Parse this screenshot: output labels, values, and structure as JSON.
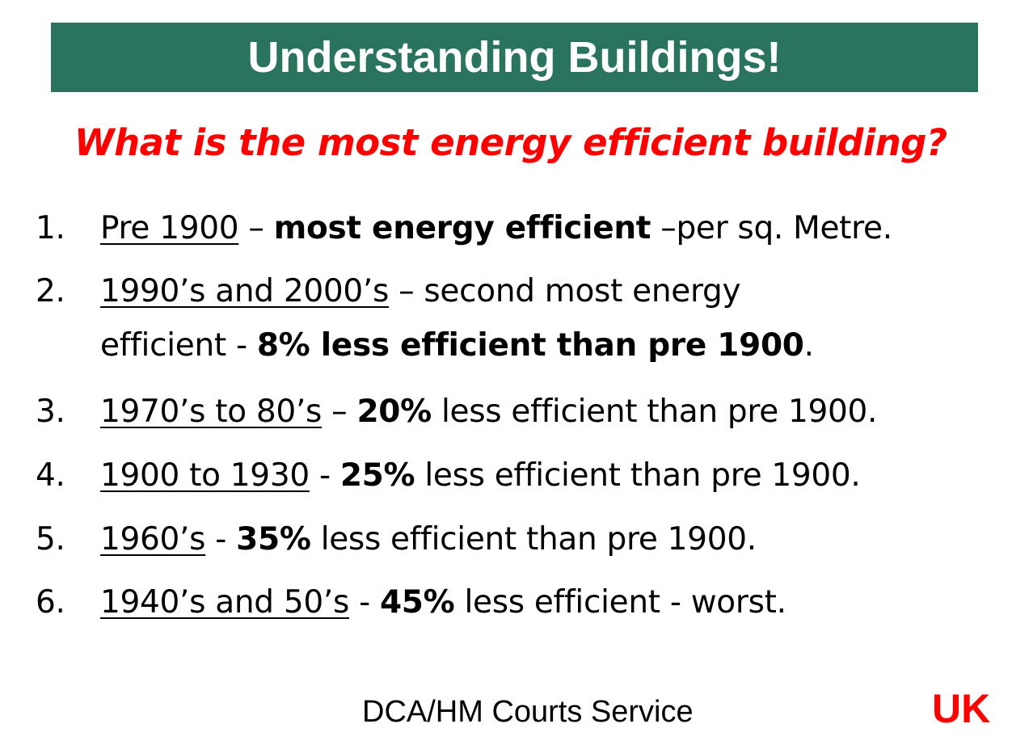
{
  "title": "Understanding Buildings!",
  "question": "What is the most energy efficient building?",
  "items": [
    {
      "num": "1.",
      "period": "Pre 1900",
      "a": " – ",
      "b": "most energy efficient",
      "c": " –per sq. Metre."
    },
    {
      "num": "2.",
      "period": "1990’s and 2000’s",
      "a": " – second most energy",
      "line2a": "efficient - ",
      "line2b": "8% less efficient than pre 1900",
      "line2c": "."
    },
    {
      "num": "3.",
      "period": "1970’s to 80’s",
      "a": " – ",
      "b": "20%",
      "c": " less efficient than pre 1900."
    },
    {
      "num": "4.",
      "period": "1900 to 1930",
      "a": " - ",
      "b": "25%",
      "c": " less efficient than pre 1900."
    },
    {
      "num": "5.",
      "period": "1960’s",
      "a": " - ",
      "b": "35%",
      "c": " less efficient than pre 1900."
    },
    {
      "num": "6.",
      "period": "1940’s and 50’s",
      "a": " - ",
      "b": "45%",
      "c": " less efficient - worst."
    }
  ],
  "footer": "DCA/HM Courts Service",
  "country": "UK"
}
